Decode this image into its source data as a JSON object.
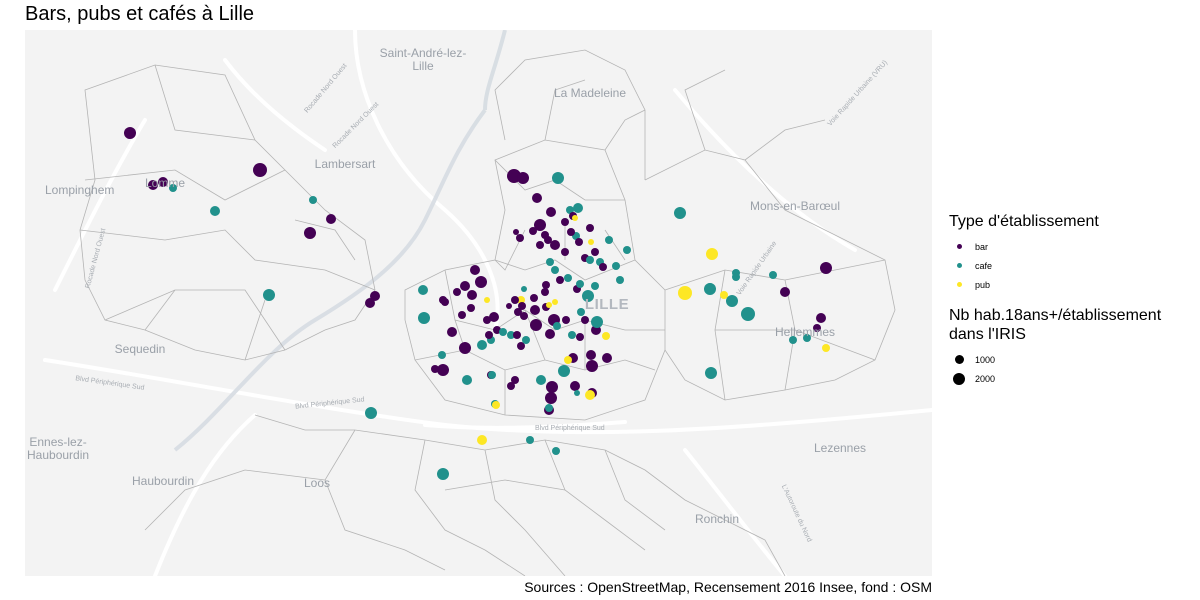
{
  "title": "Bars, pubs et cafés à Lille",
  "source": "Sources : OpenStreetMap, Recensement 2016 Insee, fond : OSM",
  "colors": {
    "bar": "#440154",
    "cafe": "#21918c",
    "pub": "#fde725"
  },
  "map": {
    "places": [
      {
        "name": "Saint-André-lez-\nLille",
        "cls": "place"
      },
      {
        "name": "La Madeleine",
        "cls": "place"
      },
      {
        "name": "Lambersart",
        "cls": "place"
      },
      {
        "name": "Mons-en-Barœul",
        "cls": "place"
      },
      {
        "name": "LILLE",
        "cls": "place lille"
      },
      {
        "name": "Hellemmes",
        "cls": "place"
      },
      {
        "name": "Sequedin",
        "cls": "place"
      },
      {
        "name": "Lomme",
        "cls": "place"
      },
      {
        "name": "Haubourdin",
        "cls": "place"
      },
      {
        "name": "Loos",
        "cls": "place"
      },
      {
        "name": "Ronchin",
        "cls": "place"
      },
      {
        "name": "Lezennes",
        "cls": "place"
      },
      {
        "name": "Lompinghem",
        "cls": "place"
      },
      {
        "name": "Ennes-lez-\nHaubourdin",
        "cls": "place"
      }
    ],
    "roads": [
      "Rocade Nord Ouest",
      "Rocade Nord Ouest",
      "Voie Rapide Urbaine (VRU)",
      "Voie Rapide Urbaine",
      "Blvd Périphérique Sud",
      "Blvd Périphérique Sud",
      "Blvd Périphérique Sud",
      "L'Autoroute du Nord",
      "Rocade Nord Ouest"
    ]
  },
  "legend": {
    "type_title": "Type d'établissement",
    "types": [
      {
        "label": "bar",
        "key": "bar"
      },
      {
        "label": "cafe",
        "key": "cafe"
      },
      {
        "label": "pub",
        "key": "pub"
      }
    ],
    "size_title": "Nb hab.18ans+/établissement\ndans l'IRIS",
    "sizes": [
      {
        "label": "1000",
        "value": 1000
      },
      {
        "label": "2000",
        "value": 2000
      }
    ]
  }
}
